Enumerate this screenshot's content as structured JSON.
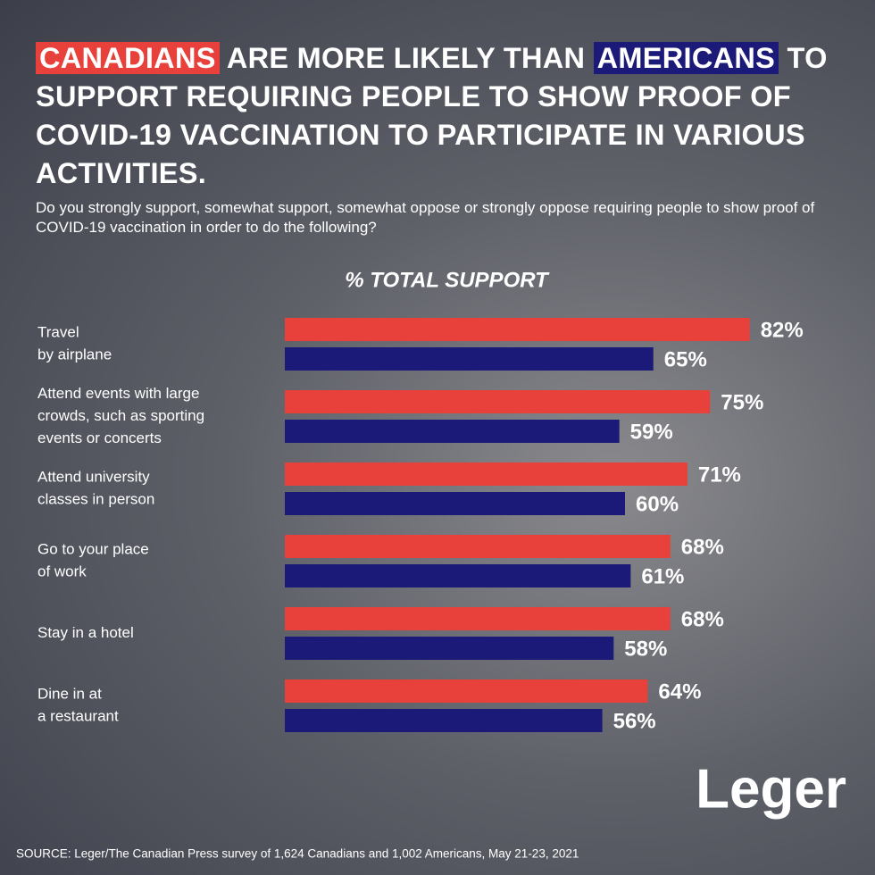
{
  "chart_data": {
    "type": "bar",
    "title_parts": [
      "ARE MORE LIKELY THAN",
      "TO SUPPORT REQUIRING PEOPLE TO SHOW PROOF OF COVID-19 VACCINATION TO PARTICIPATE IN VARIOUS ACTIVITIES."
    ],
    "subtitle": "Do you strongly support, somewhat support, somewhat oppose or strongly oppose requiring people to show proof of COVID-19 vaccination in order to do the following?",
    "value_header": "% TOTAL SUPPORT",
    "categories": [
      [
        "Travel",
        "by airplane"
      ],
      [
        "Attend events with large",
        "crowds, such as sporting",
        "events or concerts"
      ],
      [
        "Attend university",
        "classes in person"
      ],
      [
        "Go to your place",
        "of work"
      ],
      [
        "Stay in a hotel"
      ],
      [
        "Dine in at",
        "a restaurant"
      ]
    ],
    "series": [
      {
        "name": "CANADIANS",
        "color": "#e8403a",
        "values": [
          82,
          75,
          71,
          68,
          68,
          64
        ],
        "value_labels": [
          "82%",
          "75%",
          "71%",
          "68%",
          "68%",
          "64%"
        ]
      },
      {
        "name": "AMERICANS",
        "color": "#1c1a78",
        "values": [
          65,
          59,
          60,
          61,
          58,
          56
        ],
        "value_labels": [
          "65%",
          "59%",
          "60%",
          "61%",
          "58%",
          "56%"
        ]
      }
    ],
    "logo": "Leger",
    "source": "SOURCE: Leger/The Canadian Press survey of 1,624 Canadians and 1,002 Americans, May 21-23, 2021"
  }
}
